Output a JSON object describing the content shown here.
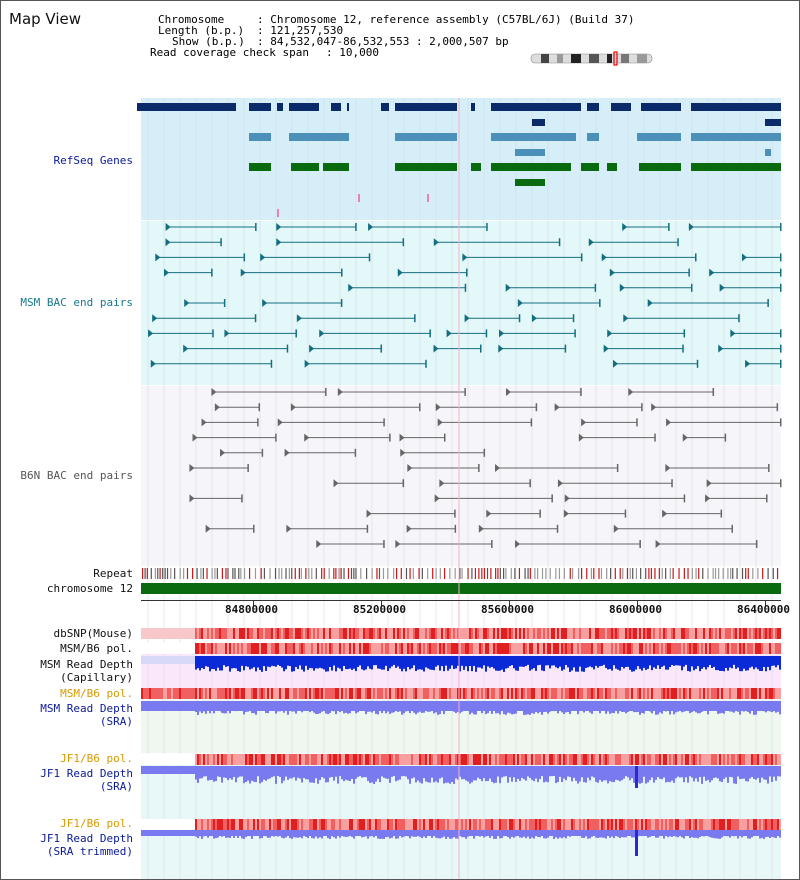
{
  "page_title": "Map View",
  "header": {
    "chromosome_key": "Chromosome",
    "chromosome_value": ": Chromosome 12, reference assembly (C57BL/6J) (Build 37)",
    "length_key": "Length (b.p.)",
    "length_value": ": 121,257,530",
    "show_key": "Show (b.p.)",
    "show_value": ": 84,532,047-86,532,553 : 2,000,507 bp",
    "coverage_key": "Read coverage check span",
    "coverage_value": ": 10,000"
  },
  "tracks": {
    "refseq": "RefSeq Genes",
    "msm_bac": "MSM BAC end pairs",
    "b6n_bac": "B6N BAC end pairs",
    "repeat": "Repeat",
    "chromosome": "chromosome 12",
    "dbsnp": "dbSNP(Mouse)",
    "msm_b6_pol_1": "MSM/B6 pol.",
    "msm_read_depth_cap_1": "MSM Read Depth",
    "msm_read_depth_cap_2": "(Capillary)",
    "msm_b6_pol_2": "MSM/B6 pol.",
    "msm_read_depth_sra_1": "MSM Read Depth",
    "msm_read_depth_sra_2": "(SRA)",
    "jf1_b6_pol_1": "JF1/B6 pol.",
    "jf1_read_depth_sra_1": "JF1 Read Depth",
    "jf1_read_depth_sra_2": "(SRA)",
    "jf1_b6_pol_2": "JF1/B6 pol.",
    "jf1_read_depth_trim_1": "JF1 Read Depth",
    "jf1_read_depth_trim_2": "(SRA trimmed)"
  },
  "ruler": {
    "ticks": [
      "84800000",
      "85200000",
      "85600000",
      "86000000",
      "86400000"
    ]
  },
  "colors": {
    "refseq_bg": "#d6eef8",
    "msm_bg": "#e3f8f8",
    "b6n_bg": "#f5f5f8",
    "navy": "#0a2a6a",
    "steel": "#4a90b8",
    "green": "#0a6a10",
    "teal": "#146e80",
    "gray": "#666666",
    "depth_blue": "#0a2ad8",
    "depth_light": "#7a7af0",
    "pol_red": "#e83a3a"
  }
}
